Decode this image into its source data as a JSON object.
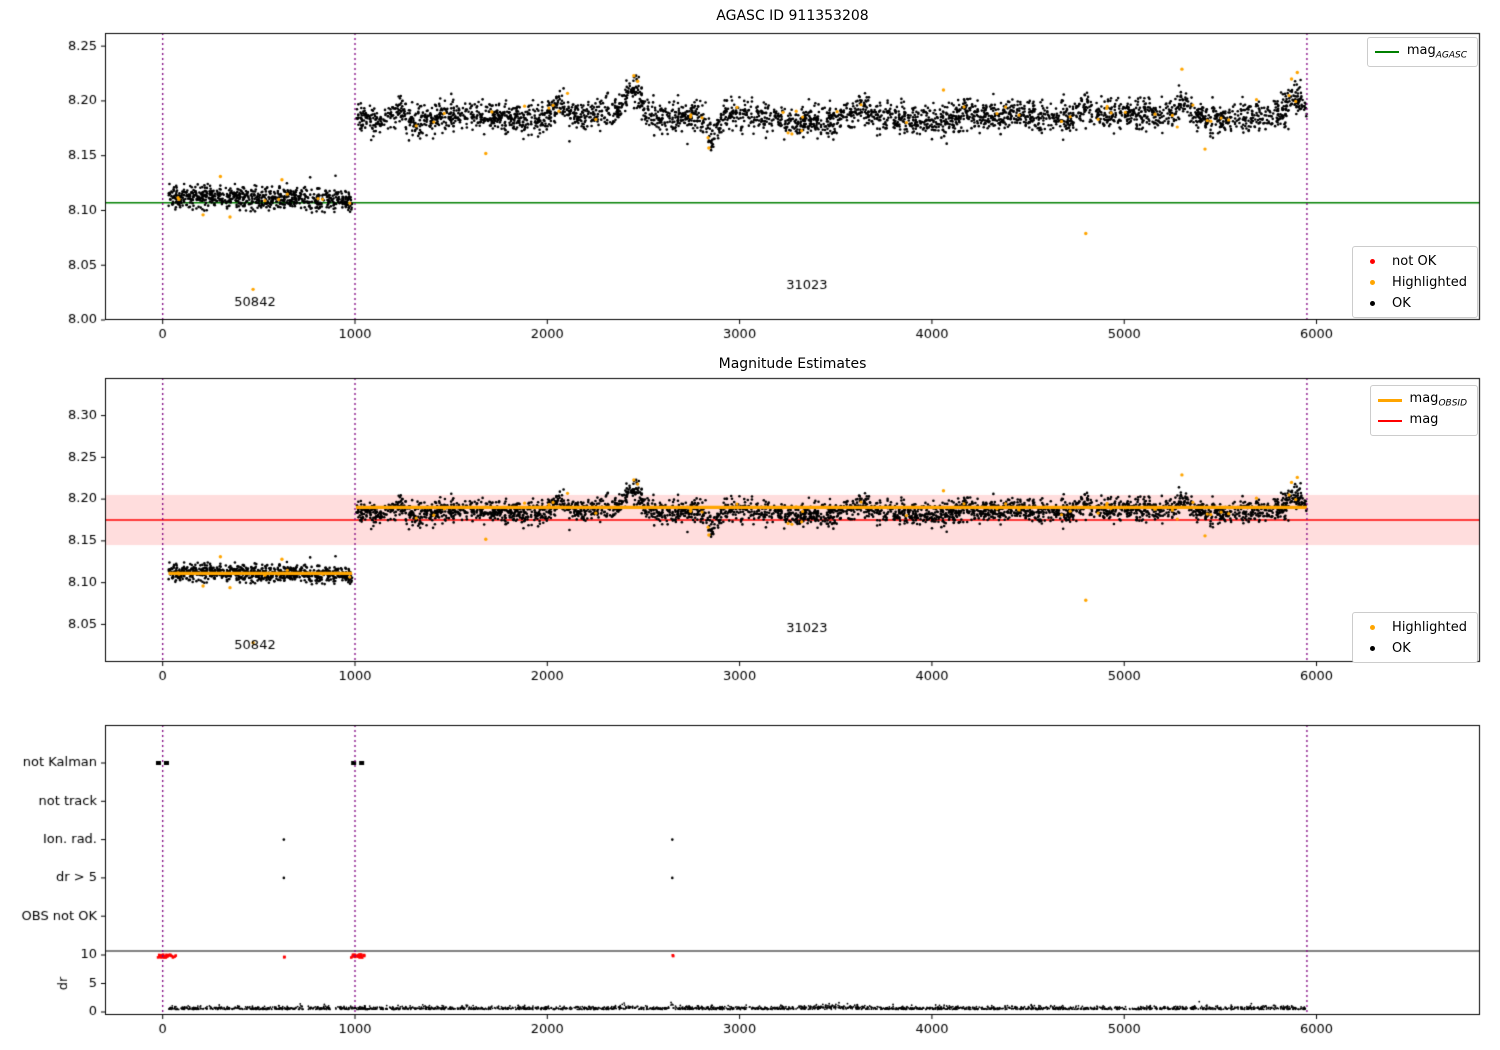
{
  "chart_data": [
    {
      "type": "scatter",
      "title": "AGASC ID 911353208",
      "xlim": [
        -300,
        6850
      ],
      "ylim": [
        8.0,
        8.262
      ],
      "xticks": [
        0,
        1000,
        2000,
        3000,
        4000,
        5000,
        6000
      ],
      "yticks": [
        8.0,
        8.05,
        8.1,
        8.15,
        8.2,
        8.25
      ],
      "vlines": [
        0,
        1000,
        5950
      ],
      "vline_color": "#800080",
      "ref_line": {
        "y": 8.107,
        "color": "#008000",
        "label": "mag",
        "label_sub": "AGASC"
      },
      "clusters": [
        {
          "obsid": "50842",
          "x0": 30,
          "x1": 985,
          "mean": 8.113,
          "sd": 0.0052,
          "n": 750,
          "trend": -0.004
        },
        {
          "obsid": "31023",
          "x0": 1005,
          "x1": 5950,
          "mean": 8.185,
          "sd": 0.0068,
          "n": 3300,
          "wave_amp": 0.004,
          "wave_period": 700,
          "bumps": [
            {
              "x": 2450,
              "w": 55,
              "a": 0.024
            },
            {
              "x": 2860,
              "w": 35,
              "a": -0.02
            },
            {
              "x": 1230,
              "w": 45,
              "a": 0.011
            },
            {
              "x": 2060,
              "w": 40,
              "a": 0.011
            },
            {
              "x": 5310,
              "w": 55,
              "a": 0.015
            },
            {
              "x": 5900,
              "w": 55,
              "a": 0.017
            },
            {
              "x": 4180,
              "w": 45,
              "a": 0.009
            },
            {
              "x": 3620,
              "w": 50,
              "a": 0.008
            },
            {
              "x": 4800,
              "w": 45,
              "a": 0.01
            }
          ]
        }
      ],
      "highlight_fraction": 0.012,
      "highlight_outliers": [
        [
          470,
          8.028
        ],
        [
          300,
          8.131
        ],
        [
          620,
          8.128
        ],
        [
          350,
          8.094
        ],
        [
          210,
          8.096
        ],
        [
          1680,
          8.152
        ],
        [
          2840,
          8.157
        ],
        [
          2450,
          8.223
        ],
        [
          2470,
          8.218
        ],
        [
          4800,
          8.079
        ],
        [
          5300,
          8.229
        ],
        [
          5420,
          8.156
        ],
        [
          5900,
          8.226
        ],
        [
          5870,
          8.22
        ],
        [
          4060,
          8.21
        ]
      ],
      "annotations": [
        {
          "text": "50842",
          "x": 480,
          "y": 8.013
        },
        {
          "text": "31023",
          "x": 3350,
          "y": 8.028
        }
      ],
      "legends": {
        "line": {
          "items": [
            {
              "label": "mag",
              "sub": "AGASC",
              "color": "#008000"
            }
          ]
        },
        "points": {
          "items": [
            {
              "label": "not OK",
              "color": "#ff0000"
            },
            {
              "label": "Highlighted",
              "color": "#ffa500"
            },
            {
              "label": "OK",
              "color": "#000000"
            }
          ]
        }
      }
    },
    {
      "type": "scatter",
      "title": "Magnitude Estimates",
      "xlim": [
        -300,
        6850
      ],
      "ylim": [
        8.005,
        8.345
      ],
      "xticks": [
        0,
        1000,
        2000,
        3000,
        4000,
        5000,
        6000
      ],
      "yticks": [
        8.05,
        8.1,
        8.15,
        8.2,
        8.25,
        8.3
      ],
      "vlines": [
        0,
        1000,
        5950
      ],
      "vline_color": "#800080",
      "mag_line": {
        "y": 8.175,
        "color": "#ff0000",
        "band": [
          8.145,
          8.205
        ],
        "band_color": "#ffdddd",
        "label": "mag"
      },
      "obsid_line": {
        "color": "#ffa500",
        "label": "mag",
        "label_sub": "OBSID",
        "segments": [
          {
            "x0": 30,
            "x1": 985,
            "y": 8.111
          },
          {
            "x0": 1005,
            "x1": 5950,
            "y": 8.19
          }
        ]
      },
      "annotations": [
        {
          "text": "50842",
          "x": 480,
          "y": 8.02
        },
        {
          "text": "31023",
          "x": 3350,
          "y": 8.041
        }
      ],
      "legends": {
        "line": {
          "items": [
            {
              "label": "mag",
              "sub": "OBSID",
              "color": "#ffa500"
            },
            {
              "label": "mag",
              "sub": "",
              "color": "#ff0000"
            }
          ]
        },
        "points": {
          "items": [
            {
              "label": "Highlighted",
              "color": "#ffa500"
            },
            {
              "label": "OK",
              "color": "#000000"
            }
          ]
        }
      }
    },
    {
      "type": "flags",
      "xlim": [
        -300,
        6850
      ],
      "xticks": [
        0,
        1000,
        2000,
        3000,
        4000,
        5000,
        6000
      ],
      "vlines": [
        0,
        1000,
        5950
      ],
      "vline_color": "#800080",
      "rows": [
        {
          "label": "not Kalman",
          "spans": [
            [
              -35,
              45
            ],
            [
              980,
              1050
            ]
          ],
          "points": []
        },
        {
          "label": "not track",
          "spans": [],
          "points": []
        },
        {
          "label": "Ion. rad.",
          "spans": [],
          "points": [
            630,
            2650
          ]
        },
        {
          "label": "dr > 5",
          "spans": [],
          "points": [
            630,
            2650
          ]
        },
        {
          "label": "OBS not OK",
          "spans": [],
          "points": []
        }
      ],
      "dr": {
        "label": "dr",
        "ticks": [
          0,
          5,
          10
        ],
        "hline": 10.7,
        "red_color": "#ff0000",
        "red_marks": [
          {
            "x0": -25,
            "x1": 70,
            "y": 9.8,
            "n": 30
          },
          {
            "x0": 627,
            "x1": 636,
            "y": 9.45,
            "n": 2
          },
          {
            "x0": 980,
            "x1": 1050,
            "y": 9.8,
            "n": 26
          },
          {
            "x0": 2646,
            "x1": 2656,
            "y": 9.7,
            "n": 2
          }
        ],
        "trace": {
          "x0": 30,
          "x1": 5950,
          "n": 2400,
          "base": 0.45,
          "noise": 0.28,
          "bumps": [
            {
              "x": 2650,
              "w": 15,
              "a": 1.6
            },
            {
              "x": 3500,
              "w": 120,
              "a": 0.5
            },
            {
              "x": 2400,
              "w": 30,
              "a": 0.5
            }
          ]
        }
      }
    }
  ]
}
